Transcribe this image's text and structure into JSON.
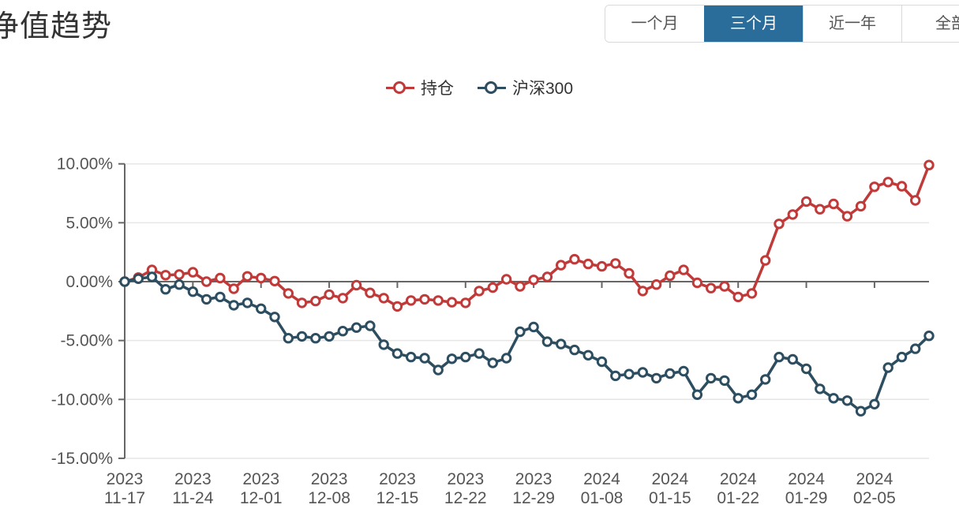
{
  "page": {
    "title": "净值趋势"
  },
  "time_range_buttons": [
    {
      "label": "一个月",
      "active": false
    },
    {
      "label": "三个月",
      "active": true
    },
    {
      "label": "近一年",
      "active": false
    },
    {
      "label": "全部",
      "active": false
    }
  ],
  "colors": {
    "accent_active_button": "#2b6d9a",
    "series_holdings": "#c13a3a",
    "series_hs300": "#2d4d60",
    "axis_line": "#666666",
    "grid_line": "#e6e6e6",
    "axis_text": "#555555",
    "title_text": "#333333"
  },
  "chart_data": {
    "type": "line",
    "title": "净值趋势",
    "xlabel": "",
    "ylabel": "",
    "y_unit": "%",
    "ylim": [
      -15,
      10
    ],
    "grid": true,
    "legend_position": "top-center",
    "y_tick_labels": [
      "10.00%",
      "5.00%",
      "0.00%",
      "-5.00%",
      "-10.00%",
      "-15.00%"
    ],
    "y_tick_values": [
      10,
      5,
      0,
      -5,
      -10,
      -15
    ],
    "x_tick_every": 5,
    "x_tick_labels": [
      {
        "year": "2023",
        "date": "11-17"
      },
      {
        "year": "2023",
        "date": "11-24"
      },
      {
        "year": "2023",
        "date": "12-01"
      },
      {
        "year": "2023",
        "date": "12-08"
      },
      {
        "year": "2023",
        "date": "12-15"
      },
      {
        "year": "2023",
        "date": "12-22"
      },
      {
        "year": "2023",
        "date": "12-29"
      },
      {
        "year": "2024",
        "date": "01-08"
      },
      {
        "year": "2024",
        "date": "01-15"
      },
      {
        "year": "2024",
        "date": "01-22"
      },
      {
        "year": "2024",
        "date": "01-29"
      },
      {
        "year": "2024",
        "date": "02-05"
      }
    ],
    "series": [
      {
        "name": "持仓",
        "color": "#c13a3a",
        "values": [
          0,
          0.35,
          1.0,
          0.55,
          0.6,
          0.8,
          0.0,
          0.3,
          -0.6,
          0.45,
          0.3,
          0.05,
          -1.0,
          -1.8,
          -1.65,
          -1.1,
          -1.4,
          -0.3,
          -0.95,
          -1.4,
          -2.1,
          -1.6,
          -1.5,
          -1.6,
          -1.75,
          -1.8,
          -0.8,
          -0.5,
          0.2,
          -0.4,
          0.15,
          0.4,
          1.4,
          1.9,
          1.5,
          1.3,
          1.55,
          0.7,
          -0.8,
          -0.25,
          0.5,
          1.0,
          -0.1,
          -0.55,
          -0.4,
          -1.3,
          -1.0,
          1.8,
          4.9,
          5.7,
          6.8,
          6.15,
          6.6,
          5.55,
          6.4,
          8.05,
          8.45,
          8.1,
          6.9,
          9.9
        ]
      },
      {
        "name": "沪深300",
        "color": "#2d4d60",
        "values": [
          0,
          0.25,
          0.4,
          -0.65,
          -0.25,
          -0.85,
          -1.5,
          -1.3,
          -2.0,
          -1.8,
          -2.3,
          -3.0,
          -4.8,
          -4.65,
          -4.8,
          -4.65,
          -4.2,
          -3.9,
          -3.75,
          -5.35,
          -6.1,
          -6.4,
          -6.5,
          -7.5,
          -6.55,
          -6.4,
          -6.1,
          -6.9,
          -6.5,
          -4.25,
          -3.85,
          -5.1,
          -5.3,
          -5.8,
          -6.25,
          -6.8,
          -8.0,
          -7.85,
          -7.7,
          -8.2,
          -7.8,
          -7.6,
          -9.6,
          -8.2,
          -8.4,
          -9.9,
          -9.6,
          -8.3,
          -6.4,
          -6.6,
          -7.4,
          -9.1,
          -9.9,
          -10.1,
          -11.0,
          -10.4,
          -7.3,
          -6.4,
          -5.7,
          -4.6
        ]
      }
    ]
  }
}
